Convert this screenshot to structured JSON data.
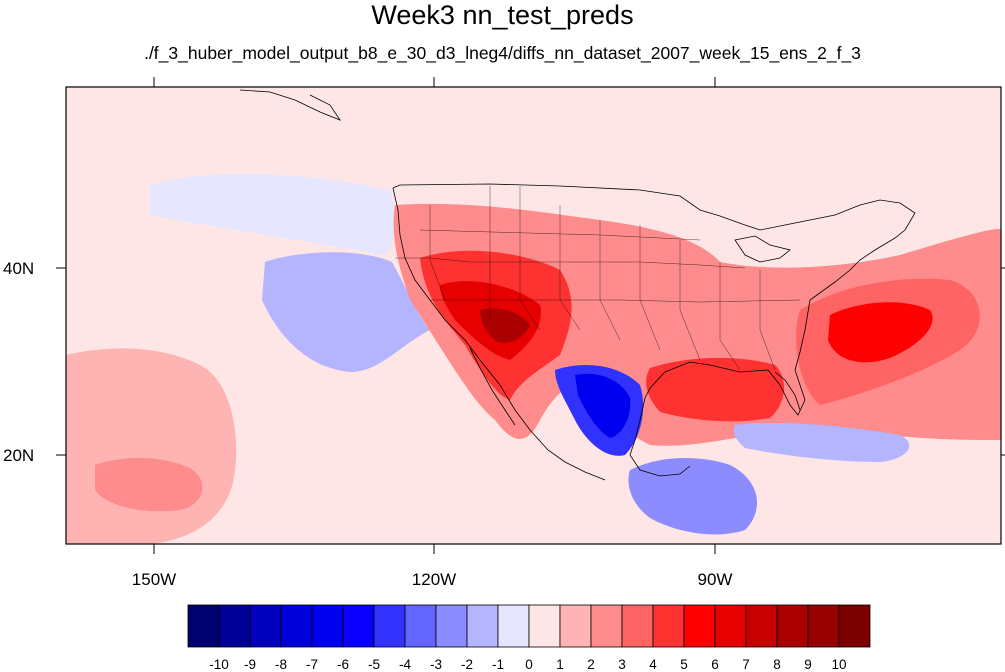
{
  "title": "Week3 nn_test_preds",
  "subtitle": "./f_3_huber_model_output_b8_e_30_d3_lneg4/diffs_nn_dataset_2007_week_15_ens_2_f_3",
  "map": {
    "lon_range": [
      -160,
      -60
    ],
    "lat_range": [
      11,
      60
    ],
    "lon_ticks": [
      "150W",
      "120W",
      "90W"
    ],
    "lat_ticks": [
      "40N",
      "20N"
    ],
    "regions": [
      {
        "name": "background",
        "level": 0.5
      },
      {
        "name": "central-pacific-warm",
        "level": 1.5
      },
      {
        "name": "east-pacific-cool",
        "level": -1.5
      },
      {
        "name": "hawaii-warm",
        "level": 2.5
      },
      {
        "name": "north-pacific-cool",
        "level": -0.5
      },
      {
        "name": "conus-warm",
        "level": 2.5
      },
      {
        "name": "southwest-hot",
        "level": 4.5
      },
      {
        "name": "southwest-core",
        "level": 6.5
      },
      {
        "name": "southwest-peak",
        "level": 8.5
      },
      {
        "name": "gulf-warm",
        "level": 4.5
      },
      {
        "name": "atlantic-warm",
        "level": 3.5
      },
      {
        "name": "atlantic-core",
        "level": 5.5
      },
      {
        "name": "mexico-cool",
        "level": -4.5
      },
      {
        "name": "mexico-cool-core",
        "level": -6.5
      },
      {
        "name": "central-america-cool",
        "level": -2.5
      },
      {
        "name": "caribbean-cool",
        "level": -1.5
      }
    ]
  },
  "colorbar": {
    "labels": [
      "-10",
      "-9",
      "-8",
      "-7",
      "-6",
      "-5",
      "-4",
      "-3",
      "-2",
      "-1",
      "0",
      "1",
      "2",
      "3",
      "4",
      "5",
      "6",
      "7",
      "8",
      "9",
      "10"
    ],
    "colors": [
      "#00006e",
      "#000096",
      "#0000be",
      "#0000dc",
      "#0000f0",
      "#0a00ff",
      "#3232ff",
      "#6464ff",
      "#8c8cff",
      "#b4b4ff",
      "#e6e6ff",
      "#ffe6e6",
      "#ffb4b4",
      "#ff8c8c",
      "#ff6464",
      "#ff3232",
      "#ff0000",
      "#e60000",
      "#c80000",
      "#aa0000",
      "#960000",
      "#7d0000"
    ]
  }
}
